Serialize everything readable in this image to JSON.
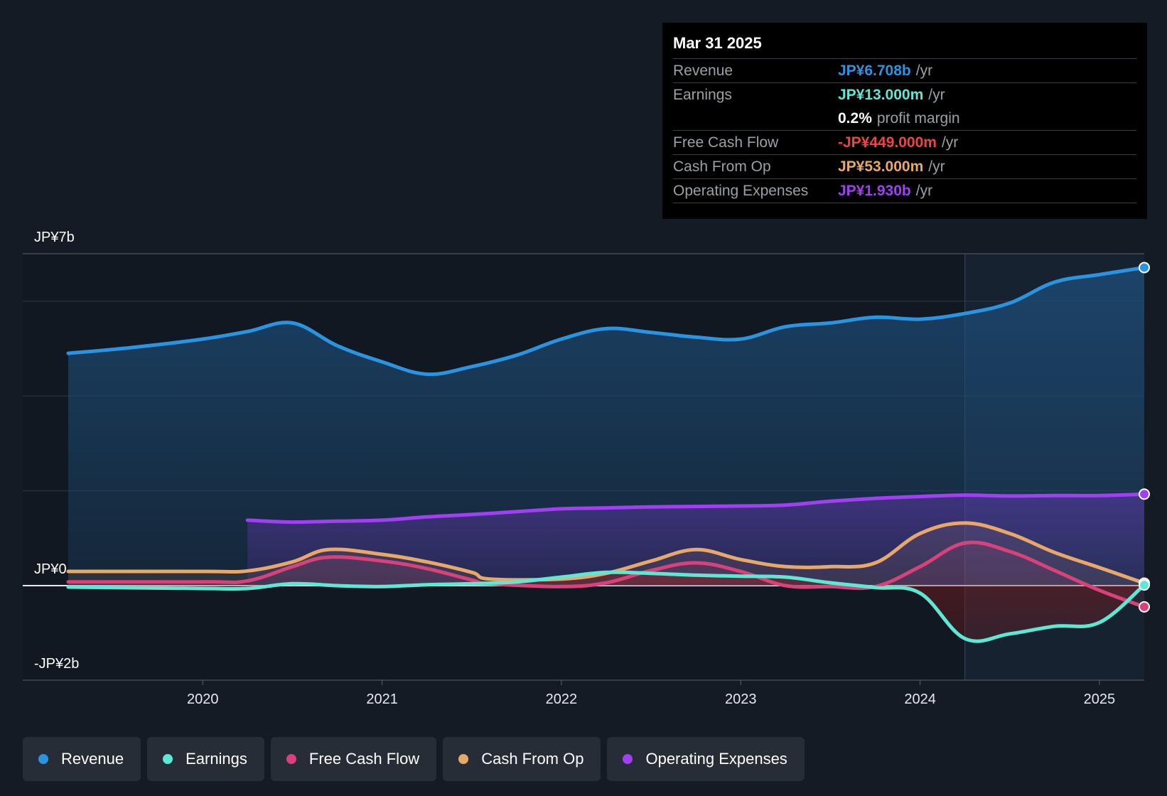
{
  "chart_data": {
    "type": "line",
    "title": "",
    "y_axis": {
      "min": -2,
      "max": 7,
      "unit": "JP¥b",
      "labels": [
        "JP¥7b",
        "JP¥0",
        "-JP¥2b"
      ],
      "gridlines": [
        7,
        6,
        4,
        2,
        0,
        -2
      ]
    },
    "x_axis": {
      "min": 2019.25,
      "max": 2025.25,
      "ticks": [
        "2020",
        "2021",
        "2022",
        "2023",
        "2024",
        "2025"
      ]
    },
    "highlight_from": 2024.25,
    "series": [
      {
        "name": "Revenue",
        "color": "#2b94e1",
        "fill": true,
        "points": [
          [
            2019.25,
            4.9
          ],
          [
            2019.6,
            5.02
          ],
          [
            2020.0,
            5.2
          ],
          [
            2020.25,
            5.36
          ],
          [
            2020.5,
            5.54
          ],
          [
            2020.75,
            5.06
          ],
          [
            2021.0,
            4.72
          ],
          [
            2021.25,
            4.46
          ],
          [
            2021.5,
            4.62
          ],
          [
            2021.75,
            4.86
          ],
          [
            2022.0,
            5.2
          ],
          [
            2022.25,
            5.42
          ],
          [
            2022.5,
            5.34
          ],
          [
            2022.75,
            5.24
          ],
          [
            2023.0,
            5.2
          ],
          [
            2023.25,
            5.46
          ],
          [
            2023.5,
            5.54
          ],
          [
            2023.75,
            5.66
          ],
          [
            2024.0,
            5.62
          ],
          [
            2024.25,
            5.74
          ],
          [
            2024.5,
            5.96
          ],
          [
            2024.75,
            6.4
          ],
          [
            2025.0,
            6.56
          ],
          [
            2025.25,
            6.708
          ]
        ]
      },
      {
        "name": "Operating Expenses",
        "color": "#a040f0",
        "fill": true,
        "points": [
          [
            2020.25,
            1.38
          ],
          [
            2020.5,
            1.34
          ],
          [
            2020.75,
            1.36
          ],
          [
            2021.0,
            1.38
          ],
          [
            2021.25,
            1.45
          ],
          [
            2021.5,
            1.5
          ],
          [
            2021.75,
            1.56
          ],
          [
            2022.0,
            1.62
          ],
          [
            2022.25,
            1.64
          ],
          [
            2022.5,
            1.66
          ],
          [
            2022.75,
            1.67
          ],
          [
            2023.0,
            1.68
          ],
          [
            2023.25,
            1.7
          ],
          [
            2023.5,
            1.78
          ],
          [
            2023.75,
            1.84
          ],
          [
            2024.0,
            1.88
          ],
          [
            2024.25,
            1.91
          ],
          [
            2024.5,
            1.89
          ],
          [
            2024.75,
            1.9
          ],
          [
            2025.0,
            1.9
          ],
          [
            2025.25,
            1.93
          ]
        ]
      },
      {
        "name": "Cash From Op",
        "color": "#e8a86a",
        "fill": true,
        "points": [
          [
            2019.25,
            0.3
          ],
          [
            2020.0,
            0.3
          ],
          [
            2020.25,
            0.31
          ],
          [
            2020.5,
            0.5
          ],
          [
            2020.7,
            0.76
          ],
          [
            2021.0,
            0.66
          ],
          [
            2021.25,
            0.5
          ],
          [
            2021.5,
            0.28
          ],
          [
            2021.6,
            0.14
          ],
          [
            2022.0,
            0.14
          ],
          [
            2022.25,
            0.26
          ],
          [
            2022.5,
            0.52
          ],
          [
            2022.75,
            0.76
          ],
          [
            2023.0,
            0.55
          ],
          [
            2023.25,
            0.4
          ],
          [
            2023.5,
            0.4
          ],
          [
            2023.75,
            0.48
          ],
          [
            2024.0,
            1.1
          ],
          [
            2024.25,
            1.32
          ],
          [
            2024.5,
            1.1
          ],
          [
            2024.75,
            0.7
          ],
          [
            2025.0,
            0.38
          ],
          [
            2025.25,
            0.053
          ]
        ]
      },
      {
        "name": "Free Cash Flow",
        "color": "#d8427a",
        "fill": true,
        "points": [
          [
            2019.25,
            0.08
          ],
          [
            2020.0,
            0.08
          ],
          [
            2020.25,
            0.1
          ],
          [
            2020.5,
            0.4
          ],
          [
            2020.7,
            0.6
          ],
          [
            2021.0,
            0.52
          ],
          [
            2021.25,
            0.36
          ],
          [
            2021.5,
            0.12
          ],
          [
            2021.6,
            0.04
          ],
          [
            2022.0,
            -0.02
          ],
          [
            2022.25,
            0.06
          ],
          [
            2022.5,
            0.32
          ],
          [
            2022.75,
            0.48
          ],
          [
            2023.0,
            0.3
          ],
          [
            2023.25,
            0.0
          ],
          [
            2023.5,
            -0.02
          ],
          [
            2023.75,
            -0.02
          ],
          [
            2024.0,
            0.4
          ],
          [
            2024.25,
            0.9
          ],
          [
            2024.5,
            0.72
          ],
          [
            2024.75,
            0.32
          ],
          [
            2025.0,
            -0.1
          ],
          [
            2025.25,
            -0.449
          ]
        ]
      },
      {
        "name": "Earnings",
        "color": "#5ee8d4",
        "fill": true,
        "points": [
          [
            2019.25,
            -0.03
          ],
          [
            2020.0,
            -0.06
          ],
          [
            2020.25,
            -0.06
          ],
          [
            2020.5,
            0.04
          ],
          [
            2020.75,
            0.0
          ],
          [
            2021.0,
            -0.02
          ],
          [
            2021.25,
            0.02
          ],
          [
            2021.5,
            0.04
          ],
          [
            2021.75,
            0.08
          ],
          [
            2022.0,
            0.18
          ],
          [
            2022.25,
            0.28
          ],
          [
            2022.5,
            0.26
          ],
          [
            2022.75,
            0.22
          ],
          [
            2023.0,
            0.2
          ],
          [
            2023.25,
            0.18
          ],
          [
            2023.5,
            0.06
          ],
          [
            2023.75,
            -0.04
          ],
          [
            2024.0,
            -0.16
          ],
          [
            2024.25,
            -1.12
          ],
          [
            2024.5,
            -1.02
          ],
          [
            2024.75,
            -0.86
          ],
          [
            2025.0,
            -0.78
          ],
          [
            2025.25,
            0.013
          ]
        ]
      }
    ]
  },
  "tooltip": {
    "date": "Mar 31 2025",
    "rows": [
      {
        "label": "Revenue",
        "value": "JP¥6.708b",
        "unit": "/yr",
        "color": "#2b94e1"
      },
      {
        "label": "Earnings",
        "value": "JP¥13.000m",
        "unit": "/yr",
        "color": "#5ee8d4"
      },
      {
        "label": "",
        "value": "0.2%",
        "unit": "profit margin",
        "color": "#ffffff"
      },
      {
        "label": "Free Cash Flow",
        "value": "-JP¥449.000m",
        "unit": "/yr",
        "color": "#ef4444"
      },
      {
        "label": "Cash From Op",
        "value": "JP¥53.000m",
        "unit": "/yr",
        "color": "#e8a86a"
      },
      {
        "label": "Operating Expenses",
        "value": "JP¥1.930b",
        "unit": "/yr",
        "color": "#a040f0"
      }
    ]
  },
  "legend": [
    {
      "label": "Revenue",
      "color": "#2b94e1"
    },
    {
      "label": "Earnings",
      "color": "#5ee8d4"
    },
    {
      "label": "Free Cash Flow",
      "color": "#d8427a"
    },
    {
      "label": "Cash From Op",
      "color": "#e8a86a"
    },
    {
      "label": "Operating Expenses",
      "color": "#a040f0"
    }
  ]
}
